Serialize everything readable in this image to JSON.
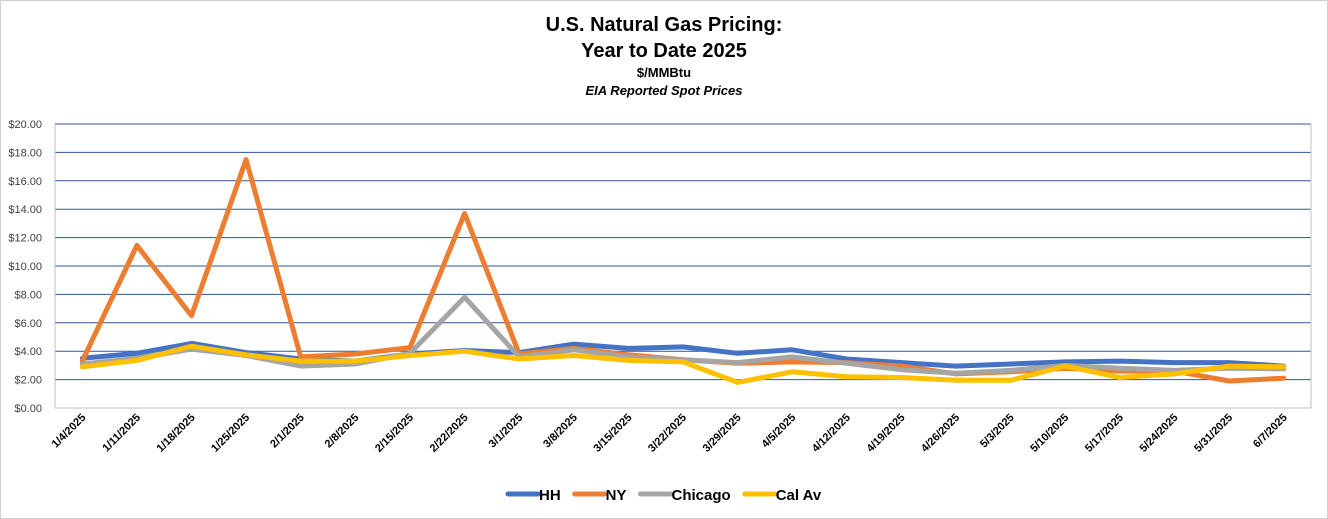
{
  "chart_data": {
    "type": "line",
    "title": "U.S. Natural Gas Pricing:",
    "title_line2": "Year to Date 2025",
    "unit": "$/MMBtu",
    "subtitle": "EIA Reported Spot Prices",
    "categories": [
      "1/4/2025",
      "1/11/2025",
      "1/18/2025",
      "1/25/2025",
      "2/1/2025",
      "2/8/2025",
      "2/15/2025",
      "2/22/2025",
      "3/1/2025",
      "3/8/2025",
      "3/15/2025",
      "3/22/2025",
      "3/29/2025",
      "4/5/2025",
      "4/12/2025",
      "4/19/2025",
      "4/26/2025",
      "5/3/2025",
      "5/10/2025",
      "5/17/2025",
      "5/24/2025",
      "5/31/2025",
      "6/7/2025"
    ],
    "y_ticks": [
      "$0.00",
      "$2.00",
      "$4.00",
      "$6.00",
      "$8.00",
      "$10.00",
      "$12.00",
      "$14.00",
      "$16.00",
      "$18.00",
      "$20.00"
    ],
    "ylim": [
      0,
      20
    ],
    "grid": true,
    "legend_position": "bottom",
    "series": [
      {
        "name": "HH",
        "color": "#4472C4",
        "values": [
          3.5,
          3.85,
          4.55,
          3.9,
          3.45,
          3.3,
          3.8,
          4.05,
          3.9,
          4.5,
          4.2,
          4.3,
          3.85,
          4.1,
          3.45,
          3.2,
          2.95,
          3.1,
          3.25,
          3.3,
          3.2,
          3.2,
          2.95
        ]
      },
      {
        "name": "NY",
        "color": "#ED7D31",
        "values": [
          3.3,
          11.45,
          6.5,
          17.5,
          3.6,
          3.8,
          4.25,
          13.7,
          3.8,
          4.2,
          3.75,
          3.4,
          3.15,
          3.25,
          3.2,
          2.95,
          2.4,
          2.55,
          2.8,
          2.6,
          2.6,
          1.9,
          2.1
        ]
      },
      {
        "name": "Chicago",
        "color": "#A5A5A5",
        "values": [
          3.1,
          3.5,
          4.15,
          3.7,
          2.95,
          3.1,
          3.85,
          7.8,
          3.6,
          4.1,
          3.6,
          3.4,
          3.2,
          3.6,
          3.15,
          2.7,
          2.45,
          2.65,
          3.0,
          2.8,
          2.65,
          2.8,
          2.75
        ]
      },
      {
        "name": "Cal Av",
        "color": "#FFC000",
        "values": [
          2.9,
          3.35,
          4.35,
          3.75,
          3.3,
          3.3,
          3.7,
          4.0,
          3.45,
          3.7,
          3.35,
          3.25,
          1.8,
          2.55,
          2.2,
          2.15,
          1.95,
          1.95,
          2.95,
          2.15,
          2.4,
          2.95,
          2.9
        ]
      }
    ]
  }
}
